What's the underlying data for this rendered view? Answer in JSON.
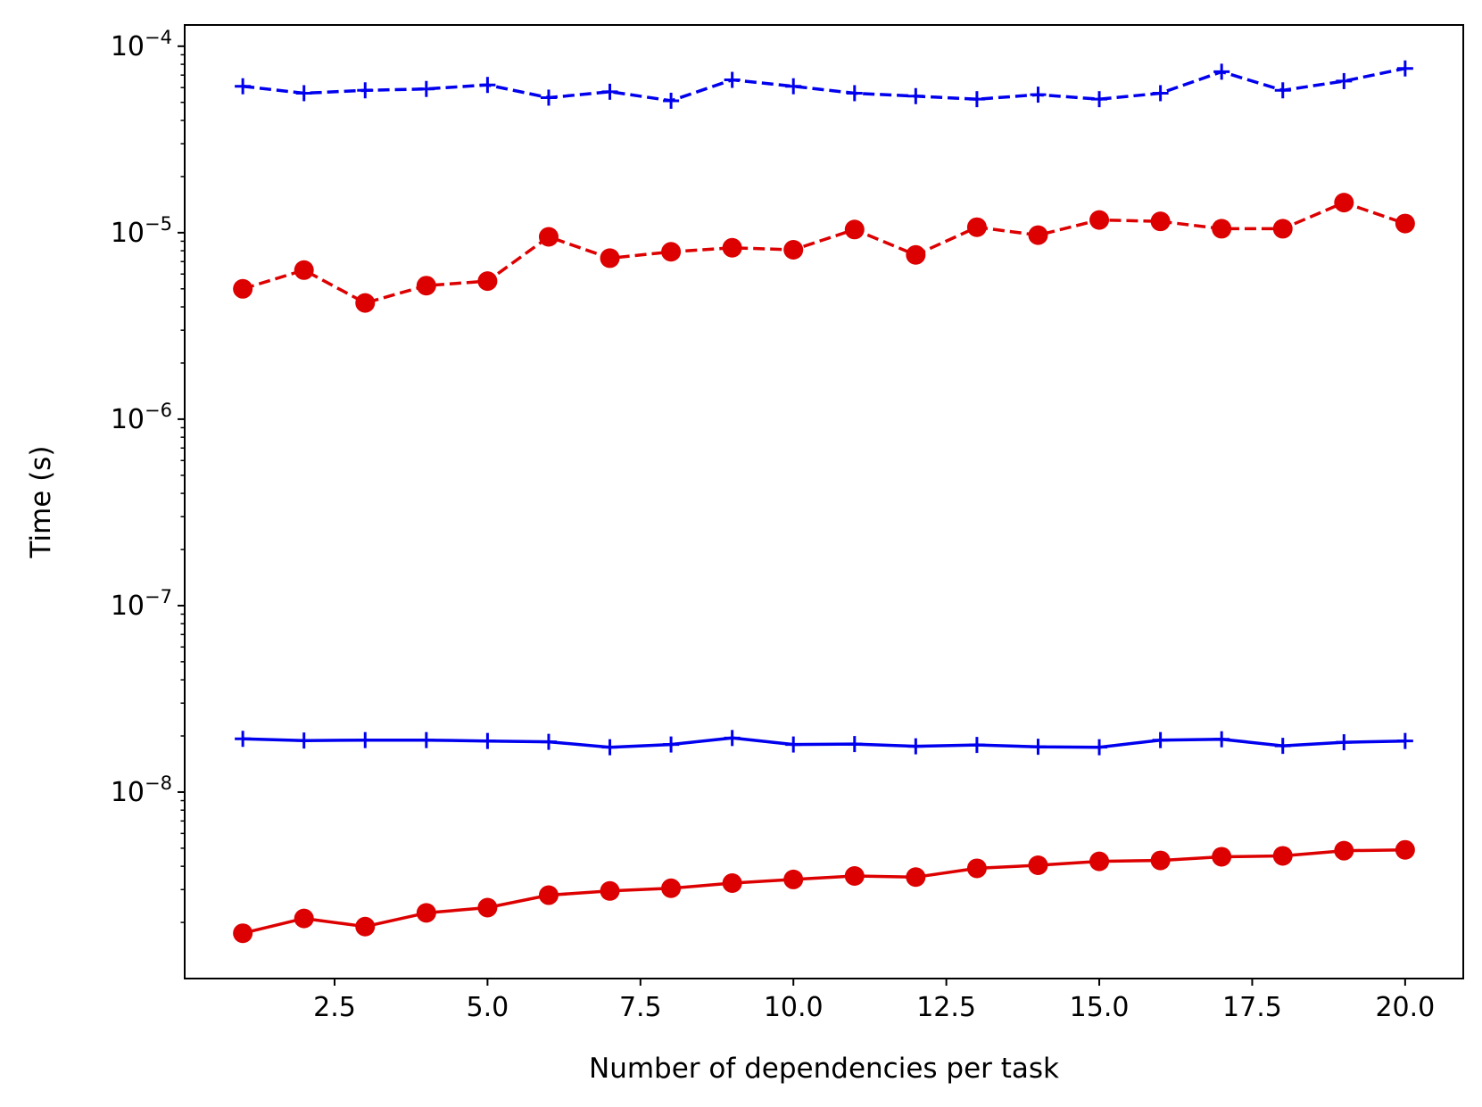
{
  "chart_data": {
    "type": "line",
    "xlabel": "Number of dependencies per task",
    "ylabel": "Time (s)",
    "x": [
      1,
      2,
      3,
      4,
      5,
      6,
      7,
      8,
      9,
      10,
      11,
      12,
      13,
      14,
      15,
      16,
      17,
      18,
      19,
      20
    ],
    "xlim": [
      0.05,
      20.95
    ],
    "ylim": [
      1e-09,
      0.00013
    ],
    "yscale": "log",
    "grid": false,
    "x_ticks": [
      {
        "value": 2.5,
        "label": "2.5"
      },
      {
        "value": 5.0,
        "label": "5.0"
      },
      {
        "value": 7.5,
        "label": "7.5"
      },
      {
        "value": 10.0,
        "label": "10.0"
      },
      {
        "value": 12.5,
        "label": "12.5"
      },
      {
        "value": 15.0,
        "label": "15.0"
      },
      {
        "value": 17.5,
        "label": "17.5"
      },
      {
        "value": 20.0,
        "label": "20.0"
      }
    ],
    "y_ticks": [
      {
        "value": 1e-08,
        "base": "10",
        "exp": "−8"
      },
      {
        "value": 1e-07,
        "base": "10",
        "exp": "−7"
      },
      {
        "value": 1e-06,
        "base": "10",
        "exp": "−6"
      },
      {
        "value": 1e-05,
        "base": "10",
        "exp": "−5"
      },
      {
        "value": 0.0001,
        "base": "10",
        "exp": "−4"
      }
    ],
    "series": [
      {
        "color": "#0000ee",
        "dash": "dashed",
        "marker": "plus",
        "values": [
          6.1e-05,
          5.6e-05,
          5.8e-05,
          5.9e-05,
          6.2e-05,
          5.3e-05,
          5.7e-05,
          5.1e-05,
          6.6e-05,
          6.1e-05,
          5.6e-05,
          5.4e-05,
          5.2e-05,
          5.5e-05,
          5.2e-05,
          5.6e-05,
          7.3e-05,
          5.8e-05,
          6.5e-05,
          7.6e-05
        ]
      },
      {
        "color": "#dd0000",
        "dash": "dashed",
        "marker": "circle",
        "values": [
          5e-06,
          6.3e-06,
          4.2e-06,
          5.2e-06,
          5.5e-06,
          9.5e-06,
          7.3e-06,
          7.9e-06,
          8.3e-06,
          8.1e-06,
          1.04e-05,
          7.6e-06,
          1.07e-05,
          9.7e-06,
          1.17e-05,
          1.15e-05,
          1.05e-05,
          1.05e-05,
          1.45e-05,
          1.12e-05
        ]
      },
      {
        "color": "#0000ee",
        "dash": "solid",
        "marker": "plus",
        "values": [
          1.93e-08,
          1.89e-08,
          1.9e-08,
          1.9e-08,
          1.88e-08,
          1.86e-08,
          1.74e-08,
          1.8e-08,
          1.95e-08,
          1.8e-08,
          1.81e-08,
          1.76e-08,
          1.79e-08,
          1.75e-08,
          1.74e-08,
          1.9e-08,
          1.92e-08,
          1.77e-08,
          1.85e-08,
          1.88e-08
        ]
      },
      {
        "color": "#dd0000",
        "dash": "solid",
        "marker": "circle",
        "values": [
          1.75e-09,
          2.1e-09,
          1.9e-09,
          2.25e-09,
          2.4e-09,
          2.8e-09,
          2.95e-09,
          3.05e-09,
          3.25e-09,
          3.4e-09,
          3.55e-09,
          3.5e-09,
          3.9e-09,
          4.05e-09,
          4.25e-09,
          4.3e-09,
          4.5e-09,
          4.55e-09,
          4.85e-09,
          4.9e-09
        ]
      }
    ]
  }
}
